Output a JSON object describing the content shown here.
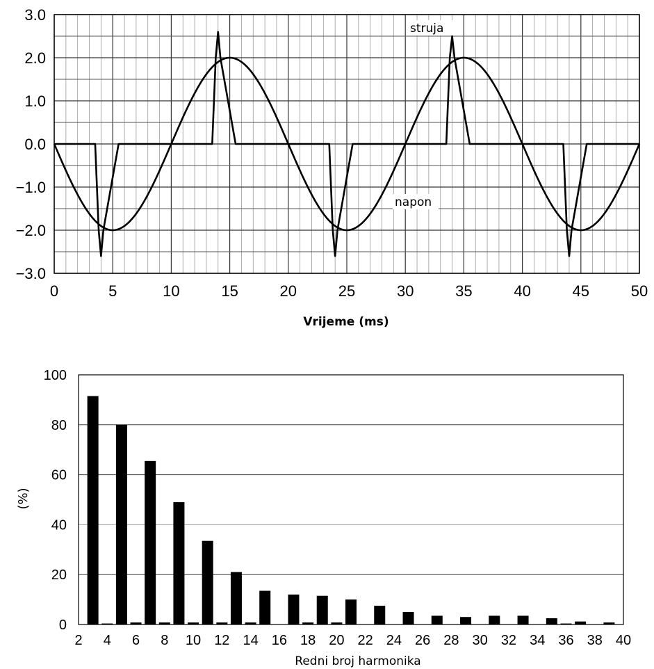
{
  "chart_data": [
    {
      "type": "line",
      "xlabel": "Vrijeme (ms)",
      "ylabel": "",
      "xlim": [
        0,
        50
      ],
      "ylim": [
        -3.0,
        3.0
      ],
      "xticks": [
        "0",
        "5",
        "10",
        "15",
        "20",
        "25",
        "30",
        "35",
        "40",
        "45",
        "50"
      ],
      "yticks": [
        "3.0",
        "2.0",
        "1.0",
        "0.0",
        "−1.0",
        "−2.0",
        "−3.0"
      ],
      "grid": true,
      "series": [
        {
          "name": "struja",
          "x": [
            0,
            3.5,
            3.8,
            4.0,
            4.2,
            5.5,
            13.5,
            13.8,
            14.0,
            14.2,
            15.5,
            23.5,
            23.8,
            24.0,
            24.2,
            25.5,
            33.5,
            33.8,
            34.0,
            34.2,
            35.5,
            43.5,
            43.8,
            44.0,
            44.2,
            45.5,
            50
          ],
          "y": [
            0,
            0,
            -2.0,
            -2.6,
            -2.0,
            0,
            0,
            2.0,
            2.6,
            2.0,
            0,
            0,
            -2.0,
            -2.6,
            -2.0,
            0,
            0,
            2.0,
            2.5,
            2.0,
            0,
            0,
            -2.0,
            -2.6,
            -2.0,
            0,
            0
          ]
        },
        {
          "name": "napon",
          "amplitude": 2.0,
          "period_ms": 20,
          "x": [
            0,
            2.5,
            5,
            7.5,
            10,
            12.5,
            15,
            17.5,
            20,
            22.5,
            25,
            27.5,
            30,
            32.5,
            35,
            37.5,
            40,
            42.5,
            45,
            47.5,
            50
          ],
          "y": [
            0,
            -1.41,
            -2.0,
            -1.41,
            0,
            1.41,
            2.0,
            1.41,
            0,
            -1.41,
            -2.0,
            -1.41,
            0,
            1.41,
            2.0,
            1.41,
            0,
            -1.41,
            -2.0,
            -1.41,
            0
          ]
        }
      ],
      "annotations": [
        "struja",
        "napon"
      ]
    },
    {
      "type": "bar",
      "xlabel": "Redni broj harmonika",
      "ylabel": "(%)",
      "xlim": [
        2,
        40
      ],
      "ylim": [
        0,
        100
      ],
      "xticks": [
        "2",
        "4",
        "6",
        "8",
        "10",
        "12",
        "14",
        "16",
        "18",
        "20",
        "22",
        "24",
        "26",
        "28",
        "30",
        "32",
        "34",
        "36",
        "38",
        "40"
      ],
      "yticks": [
        "0",
        "20",
        "40",
        "60",
        "80",
        "100"
      ],
      "grid": true,
      "categories": [
        3,
        4,
        5,
        6,
        7,
        8,
        9,
        10,
        11,
        12,
        13,
        14,
        15,
        17,
        18,
        19,
        20,
        21,
        23,
        25,
        27,
        29,
        31,
        33,
        35,
        36,
        37,
        39
      ],
      "values": [
        91.5,
        0.4,
        80,
        0.8,
        65.5,
        0.8,
        49,
        0.8,
        33.5,
        0.8,
        21,
        0.8,
        13.5,
        12,
        0.8,
        11.5,
        0.8,
        10,
        7.5,
        5,
        3.5,
        3,
        3.5,
        3.5,
        2.5,
        0.4,
        1.2,
        0.8
      ]
    }
  ]
}
